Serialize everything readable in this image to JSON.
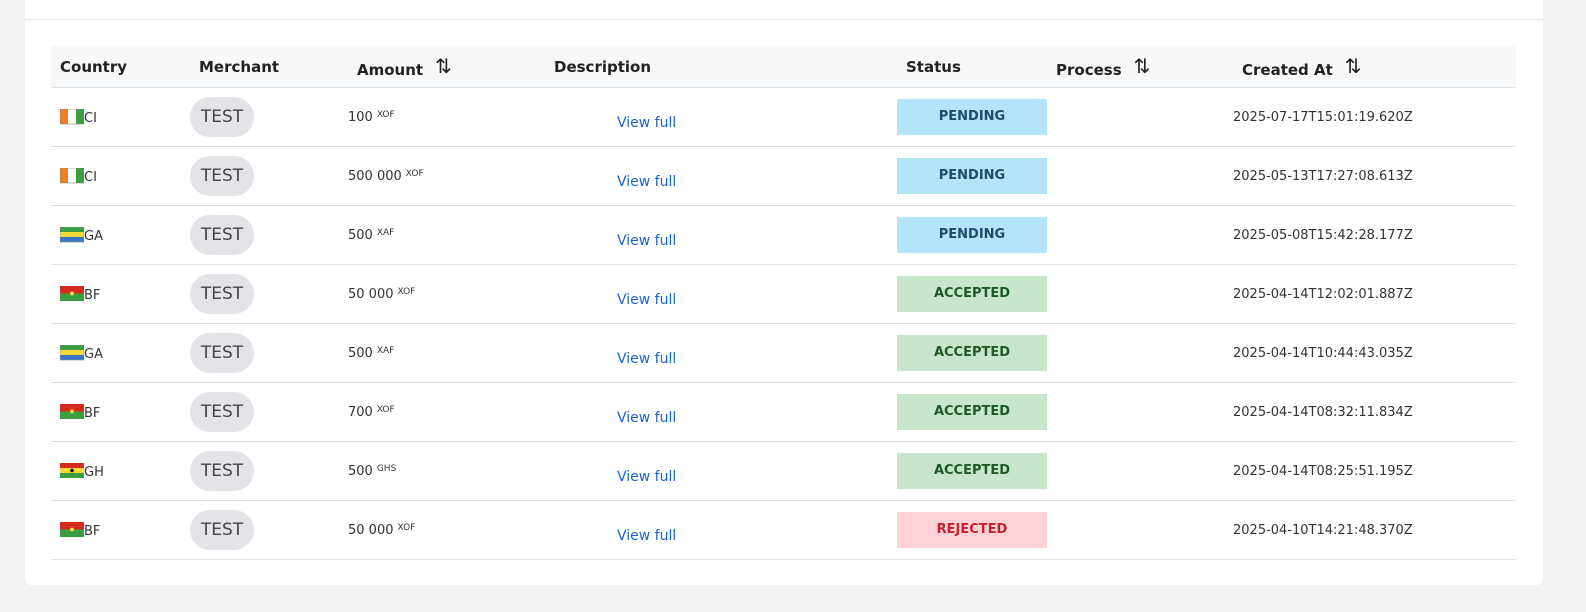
{
  "table": {
    "headers": [
      "Country",
      "Merchant",
      "Amount",
      "Description",
      "Status",
      "Process",
      "Created At"
    ],
    "rows": [
      {
        "country": "CI",
        "merchant": "TEST",
        "amount": "100",
        "currency": "XOF",
        "description": "View full",
        "status": "PENDING",
        "created_at": "2025-07-17T15:01:19.620Z"
      },
      {
        "country": "CI",
        "merchant": "TEST",
        "amount": "500 000",
        "currency": "XOF",
        "description": "View full",
        "status": "PENDING",
        "created_at": "2025-05-13T17:27:08.613Z"
      },
      {
        "country": "GA",
        "merchant": "TEST",
        "amount": "500",
        "currency": "XAF",
        "description": "View full",
        "status": "PENDING",
        "created_at": "2025-05-08T15:42:28.177Z"
      },
      {
        "country": "BF",
        "merchant": "TEST",
        "amount": "50 000",
        "currency": "XOF",
        "description": "View full",
        "status": "ACCEPTED",
        "created_at": "2025-04-14T12:02:01.887Z"
      },
      {
        "country": "GA",
        "merchant": "TEST",
        "amount": "500",
        "currency": "XAF",
        "description": "View full",
        "status": "ACCEPTED",
        "created_at": "2025-04-14T10:44:43.035Z"
      },
      {
        "country": "BF",
        "merchant": "TEST",
        "amount": "700",
        "currency": "XOF",
        "description": "View full",
        "status": "ACCEPTED",
        "created_at": "2025-04-14T08:32:11.834Z"
      },
      {
        "country": "GH",
        "merchant": "TEST",
        "amount": "500",
        "currency": "GHS",
        "description": "View full",
        "status": "ACCEPTED",
        "created_at": "2025-04-14T08:25:51.195Z"
      },
      {
        "country": "BF",
        "merchant": "TEST",
        "amount": "50 000",
        "currency": "XOF",
        "description": "View full",
        "status": "REJECTED",
        "created_at": "2025-04-10T14:21:48.370Z"
      }
    ]
  }
}
